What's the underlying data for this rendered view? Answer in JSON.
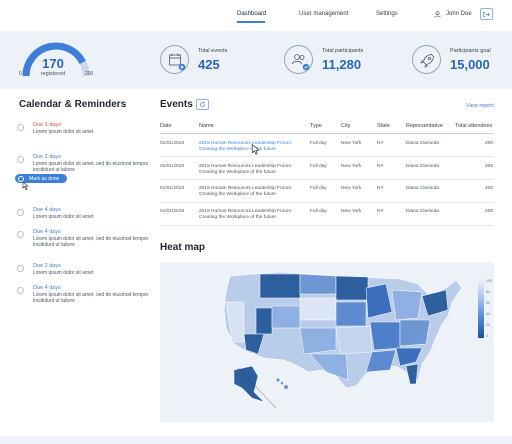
{
  "nav": {
    "items": [
      {
        "label": "Dashboard",
        "active": true
      },
      {
        "label": "User management",
        "active": false
      },
      {
        "label": "Settings",
        "active": false
      }
    ],
    "user_name": "John Doe"
  },
  "gauge": {
    "value": "170",
    "sub": "registered",
    "min": "0",
    "max": "200",
    "fraction": 0.85
  },
  "stats": [
    {
      "label": "Total events",
      "value": "425",
      "icon": "calendar-star-icon"
    },
    {
      "label": "Total participants",
      "value": "11,280",
      "icon": "users-check-icon"
    },
    {
      "label": "Participants goal",
      "value": "15,000",
      "icon": "rocket-icon"
    }
  ],
  "reminders": {
    "title": "Calendar & Reminders",
    "mark_done_label": "Mark as done",
    "items": [
      {
        "due": "Due 1 days",
        "text": "Lorem ipsum dolor sit amet",
        "color": "#e04a4a"
      },
      {
        "due": "Due 2 days",
        "text": "Lorem ipsum dolor sit amet, sed do eiusmod tempor incididunt ut labore",
        "color": "#3d7fd6"
      },
      {
        "due": "Due 4 days",
        "text": "Lorem ipsum dolor sit amet",
        "color": "#3d7fd6"
      },
      {
        "due": "Due 4 days",
        "text": "Lorem ipsum dolor sit amet, sed do eiusmod tempor incididunt ut labore",
        "color": "#3d7fd6"
      },
      {
        "due": "Due 2 days",
        "text": "Lorem ipsum dolor sit amet",
        "color": "#3d7fd6"
      },
      {
        "due": "Due 4 days",
        "text": "Lorem ipsum dolor sit amet, sed do eiusmod tempor incididunt ut labore",
        "color": "#3d7fd6"
      }
    ]
  },
  "events": {
    "title": "Events",
    "view_report": "View report",
    "columns": [
      "Date",
      "Name",
      "Type",
      "City",
      "State",
      "Representative",
      "Total attendees"
    ],
    "rows": [
      {
        "date": "01/01/2019",
        "name": "2019 Human Resources Leadership Forum: Creating the Workplace of the future",
        "type": "Full day",
        "city": "New York",
        "state": "NY",
        "rep": "Diana Clameda",
        "attendees": "200",
        "linked": true
      },
      {
        "date": "01/01/2019",
        "name": "2019 Human Resources Leadership Forum: Creating the Workplace of the future",
        "type": "Full day",
        "city": "New York",
        "state": "NY",
        "rep": "Diana Clameda",
        "attendees": "200",
        "linked": false
      },
      {
        "date": "01/01/2019",
        "name": "2019 Human Resources Leadership Forum: Creating the Workplace of the future",
        "type": "Full day",
        "city": "New York",
        "state": "NY",
        "rep": "Diana Clameda",
        "attendees": "200",
        "linked": false
      },
      {
        "date": "01/01/2019",
        "name": "2019 Human Resources Leadership Forum: Creating the Workplace of the future",
        "type": "Full day",
        "city": "New York",
        "state": "NY",
        "rep": "Diana Clameda",
        "attendees": "200",
        "linked": false
      }
    ]
  },
  "heatmap": {
    "title": "Heat map",
    "legend_ticks": [
      "100",
      "80",
      "60",
      "40",
      "20",
      "0"
    ]
  },
  "colors": {
    "accent": "#3d7fd6",
    "panel": "#edf2f8",
    "due_urgent": "#e04a4a"
  }
}
